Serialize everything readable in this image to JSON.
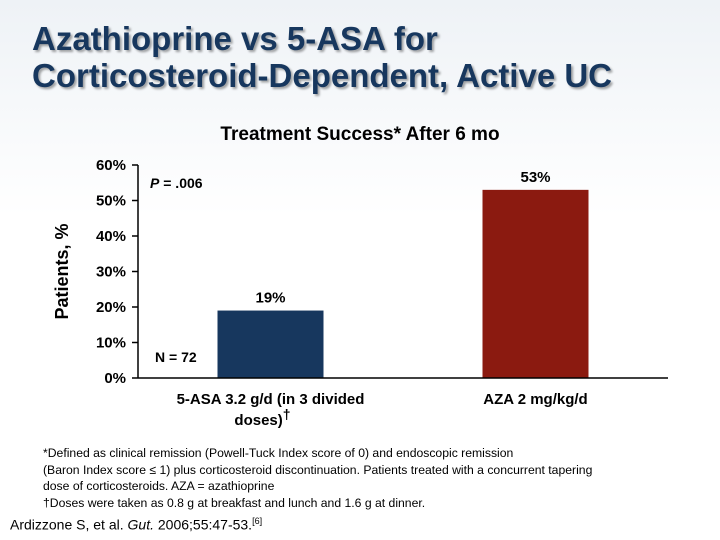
{
  "slide": {
    "title_line1": "Azathioprine vs 5-ASA for",
    "title_line2": "Corticosteroid-Dependent, Active UC"
  },
  "chart_data": {
    "type": "bar",
    "title": "Treatment Success* After 6 mo",
    "ylabel": "Patients, %",
    "ylim": [
      0,
      60
    ],
    "yticks": [
      0,
      10,
      20,
      30,
      40,
      50,
      60
    ],
    "ytick_labels": [
      "0%",
      "10%",
      "20%",
      "30%",
      "40%",
      "50%",
      "60%"
    ],
    "categories": [
      {
        "line1": "5-ASA 3.2 g/d (in 3 divided",
        "line2": "doses)",
        "mark": "†"
      },
      {
        "line1": "AZA  2 mg/kg/d",
        "line2": "",
        "mark": ""
      }
    ],
    "values": [
      19,
      53
    ],
    "value_labels": [
      "19%",
      "53%"
    ],
    "colors": [
      "#17375e",
      "#8b1a10"
    ],
    "grid": false,
    "annotations": {
      "p_prefix": "P",
      "p_value": " = .006",
      "n": "N = 72"
    }
  },
  "footnotes": {
    "line1": "*Defined as clinical remission (Powell-Tuck Index score of 0) and endoscopic remission",
    "line2a": "(Baron Index score ",
    "leq": "≤",
    "line2b": " 1) plus corticosteroid discontinuation. Patients treated with a concurrent tapering",
    "line3": "dose of corticosteroids. AZA = azathioprine",
    "line4": "†Doses were taken as 0.8 g at breakfast and lunch and 1.6 g at dinner."
  },
  "citation": {
    "authors": "Ardizzone S, et al. ",
    "journal": "Gut.",
    "details": " 2006;55:47-53.",
    "ref": "[6]"
  }
}
